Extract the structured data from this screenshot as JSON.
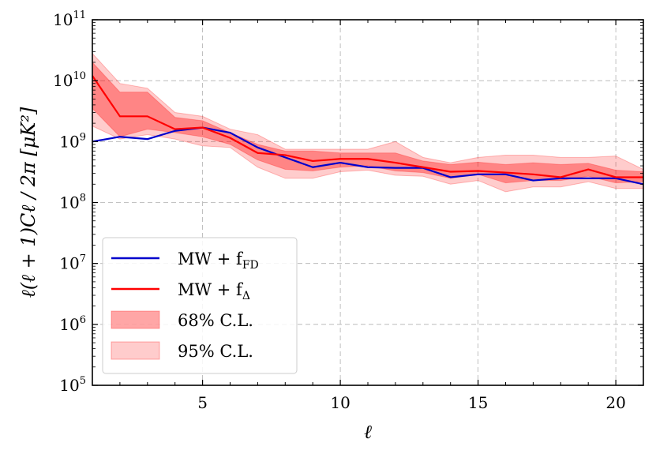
{
  "chart_data": {
    "type": "line",
    "title": "",
    "xlabel": "ℓ",
    "ylabel": "ℓ(ℓ + 1)Cℓ / 2π [μK²]",
    "xlim": [
      1,
      21
    ],
    "ylim_log10": [
      5,
      11
    ],
    "yscale": "log",
    "grid": true,
    "legend_position": "lower-left",
    "x": [
      1,
      2,
      3,
      4,
      5,
      6,
      7,
      8,
      9,
      10,
      11,
      12,
      13,
      14,
      15,
      16,
      17,
      18,
      19,
      20,
      21
    ],
    "x_ticks": [
      5,
      10,
      15,
      20
    ],
    "y_tick_base": "10",
    "y_ticks": [
      {
        "exp": 5,
        "label": "5"
      },
      {
        "exp": 6,
        "label": "6"
      },
      {
        "exp": 7,
        "label": "7"
      },
      {
        "exp": 8,
        "label": "8"
      },
      {
        "exp": 9,
        "label": "9"
      },
      {
        "exp": 10,
        "label": "10"
      },
      {
        "exp": 11,
        "label": "11"
      }
    ],
    "series": [
      {
        "name": "MW + f_FD",
        "legend_main": "MW + f",
        "legend_sub": "FD",
        "color": "#0000cc",
        "values": [
          1000000000.0,
          1200000000.0,
          1100000000.0,
          1500000000.0,
          1700000000.0,
          1400000000.0,
          800000000.0,
          550000000.0,
          380000000.0,
          450000000.0,
          380000000.0,
          370000000.0,
          370000000.0,
          260000000.0,
          290000000.0,
          290000000.0,
          230000000.0,
          250000000.0,
          250000000.0,
          250000000.0,
          200000000.0
        ]
      },
      {
        "name": "MW + f_Δ",
        "legend_main": "MW + f",
        "legend_sub": "Δ",
        "color": "#ff0000",
        "values": [
          12000000000.0,
          2600000000.0,
          2600000000.0,
          1600000000.0,
          1700000000.0,
          1150000000.0,
          650000000.0,
          600000000.0,
          480000000.0,
          520000000.0,
          520000000.0,
          450000000.0,
          380000000.0,
          320000000.0,
          330000000.0,
          310000000.0,
          290000000.0,
          260000000.0,
          350000000.0,
          260000000.0,
          260000000.0
        ]
      }
    ],
    "bands": [
      {
        "name": "95% C.L.",
        "color": "#ff0000",
        "opacity": 0.2,
        "lower": [
          1800000000.0,
          1100000000.0,
          1300000000.0,
          1100000000.0,
          850000000.0,
          800000000.0,
          380000000.0,
          250000000.0,
          250000000.0,
          320000000.0,
          340000000.0,
          280000000.0,
          270000000.0,
          200000000.0,
          230000000.0,
          150000000.0,
          180000000.0,
          180000000.0,
          220000000.0,
          170000000.0,
          170000000.0
        ],
        "upper": [
          28000000000.0,
          9000000000.0,
          7500000000.0,
          3000000000.0,
          2600000000.0,
          1600000000.0,
          1300000000.0,
          750000000.0,
          750000000.0,
          750000000.0,
          750000000.0,
          1000000000.0,
          550000000.0,
          450000000.0,
          550000000.0,
          600000000.0,
          600000000.0,
          550000000.0,
          550000000.0,
          580000000.0,
          350000000.0
        ]
      },
      {
        "name": "68% C.L.",
        "color": "#ff0000",
        "opacity": 0.35,
        "lower": [
          3500000000.0,
          1200000000.0,
          1600000000.0,
          1400000000.0,
          1200000000.0,
          900000000.0,
          500000000.0,
          350000000.0,
          330000000.0,
          380000000.0,
          400000000.0,
          330000000.0,
          310000000.0,
          250000000.0,
          290000000.0,
          210000000.0,
          230000000.0,
          230000000.0,
          270000000.0,
          210000000.0,
          220000000.0
        ],
        "upper": [
          20000000000.0,
          6500000000.0,
          6500000000.0,
          2500000000.0,
          2200000000.0,
          1400000000.0,
          900000000.0,
          700000000.0,
          700000000.0,
          650000000.0,
          650000000.0,
          650000000.0,
          480000000.0,
          420000000.0,
          460000000.0,
          420000000.0,
          450000000.0,
          420000000.0,
          440000000.0,
          340000000.0,
          320000000.0
        ]
      }
    ],
    "legend": [
      {
        "kind": "line",
        "series": 0
      },
      {
        "kind": "line",
        "series": 1
      },
      {
        "kind": "band",
        "label": "68% C.L.",
        "opacity": 0.35
      },
      {
        "kind": "band",
        "label": "95% C.L.",
        "opacity": 0.2
      }
    ]
  }
}
